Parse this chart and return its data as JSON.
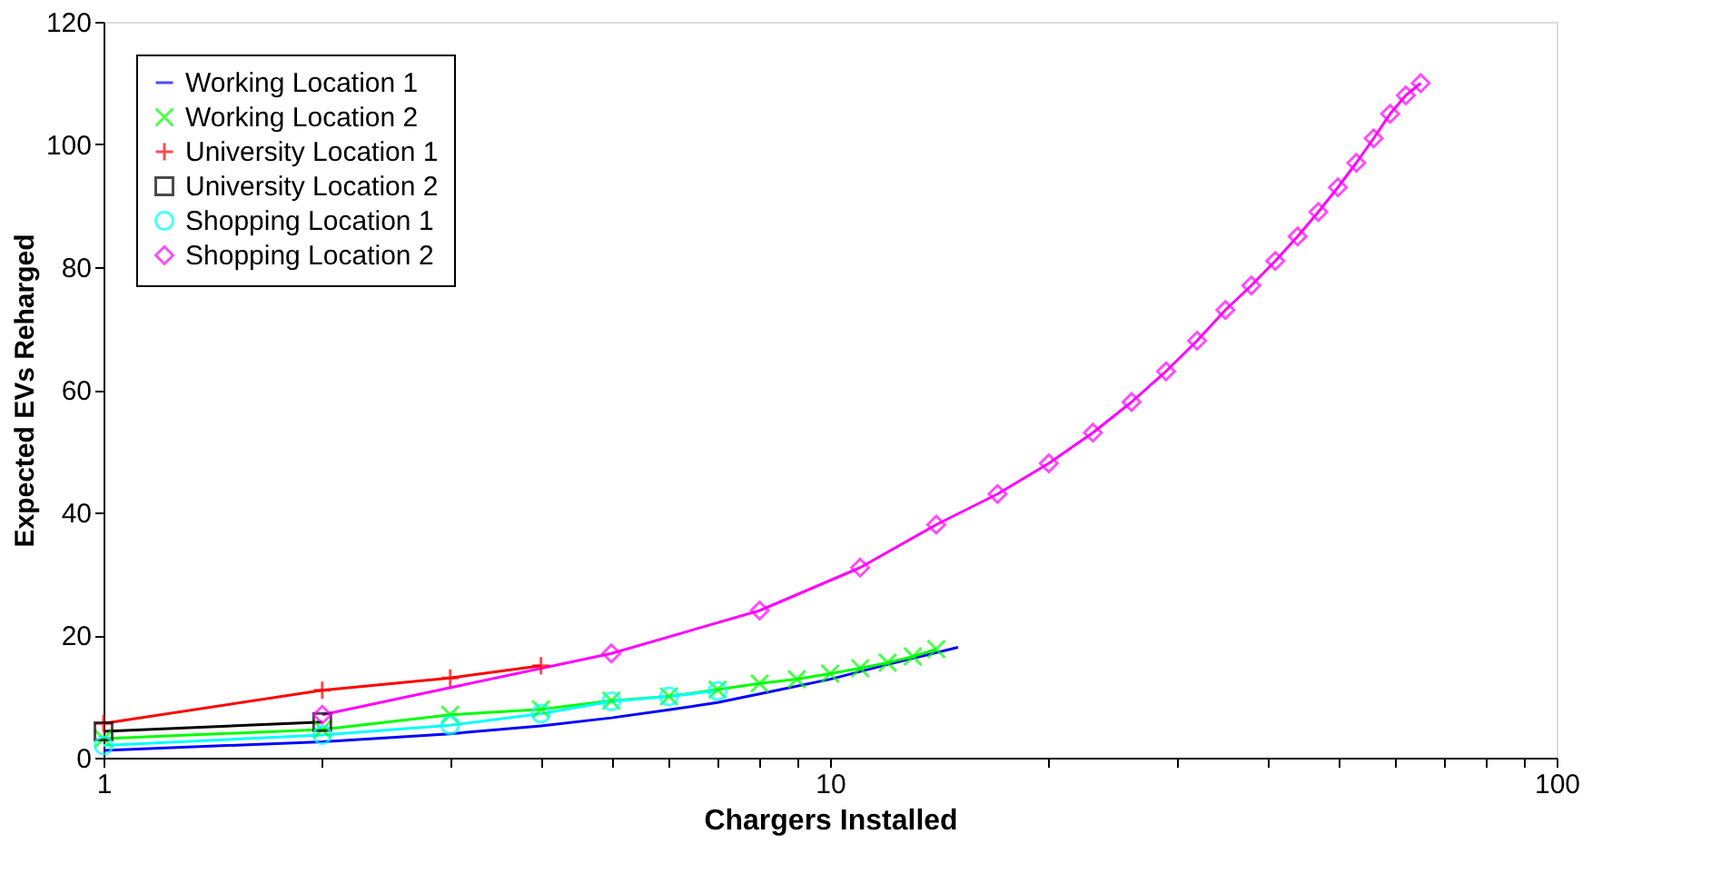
{
  "chart_data": {
    "type": "line",
    "xlabel": "Chargers Installed",
    "ylabel": "Expected EVs Reharged",
    "log": "x",
    "xlim": [
      1,
      100
    ],
    "ylim": [
      0,
      120
    ],
    "xticks": [
      1,
      {
        "value": 2,
        "label": null
      },
      {
        "value": 3,
        "label": null
      },
      {
        "value": 4,
        "label": null
      },
      {
        "value": 5,
        "label": null
      },
      {
        "value": 6,
        "label": null
      },
      {
        "value": 7,
        "label": null
      },
      {
        "value": 8,
        "label": null
      },
      {
        "value": 9,
        "label": null
      },
      10,
      {
        "value": 20,
        "label": null
      },
      {
        "value": 30,
        "label": null
      },
      {
        "value": 40,
        "label": null
      },
      {
        "value": 50,
        "label": null
      },
      {
        "value": 60,
        "label": null
      },
      {
        "value": 70,
        "label": null
      },
      {
        "value": 80,
        "label": null
      },
      {
        "value": 90,
        "label": null
      },
      100
    ],
    "yticks": [
      0,
      20,
      40,
      60,
      80,
      100,
      120
    ],
    "grid": false,
    "legend": "top left",
    "line_style": "solid",
    "series": [
      {
        "name": "Working Location 1",
        "color": "#0000ff",
        "marker": "none",
        "x": [
          1,
          2,
          3,
          4,
          5,
          6,
          7,
          8,
          10,
          12,
          15
        ],
        "values": [
          1.2,
          2.6,
          3.9,
          5.2,
          6.5,
          7.8,
          9,
          10.4,
          12.8,
          15.2,
          18
        ]
      },
      {
        "name": "Working Location 2",
        "color": "#00ff00",
        "marker": "x",
        "x": [
          1,
          2,
          3,
          4,
          5,
          6,
          7,
          8,
          9,
          10,
          11,
          12,
          13,
          14
        ],
        "values": [
          3.1,
          4.6,
          7,
          7.9,
          9.3,
          10,
          11.1,
          12.1,
          12.8,
          13.7,
          14.6,
          15.5,
          16.5,
          17.7
        ]
      },
      {
        "name": "University Location 1",
        "color": "#ff0000",
        "marker": "cross",
        "x": [
          1,
          2,
          3,
          4
        ],
        "values": [
          5.6,
          11,
          13,
          15
        ]
      },
      {
        "name": "University Location 2",
        "color": "#000000",
        "marker": "square",
        "x": [
          1,
          2
        ],
        "values": [
          4.3,
          5.8
        ]
      },
      {
        "name": "Shopping Location 1",
        "color": "#00ffff",
        "marker": "circle",
        "x": [
          1,
          2,
          3,
          4,
          5,
          6,
          7
        ],
        "values": [
          2,
          3.7,
          5.3,
          7.2,
          9.2,
          10,
          10.9
        ]
      },
      {
        "name": "Shopping Location 2",
        "color": "#ff00ff",
        "marker": "diamond",
        "x": [
          2,
          5,
          8,
          11,
          14,
          17,
          20,
          23,
          26,
          29,
          32,
          35,
          38,
          41,
          44,
          47,
          50,
          53,
          56,
          59,
          62,
          65
        ],
        "values": [
          7,
          17,
          24,
          31,
          38,
          43,
          48,
          53,
          58,
          63,
          68,
          73,
          77,
          81,
          85,
          89,
          93,
          97,
          101,
          105,
          108,
          110
        ]
      }
    ]
  }
}
